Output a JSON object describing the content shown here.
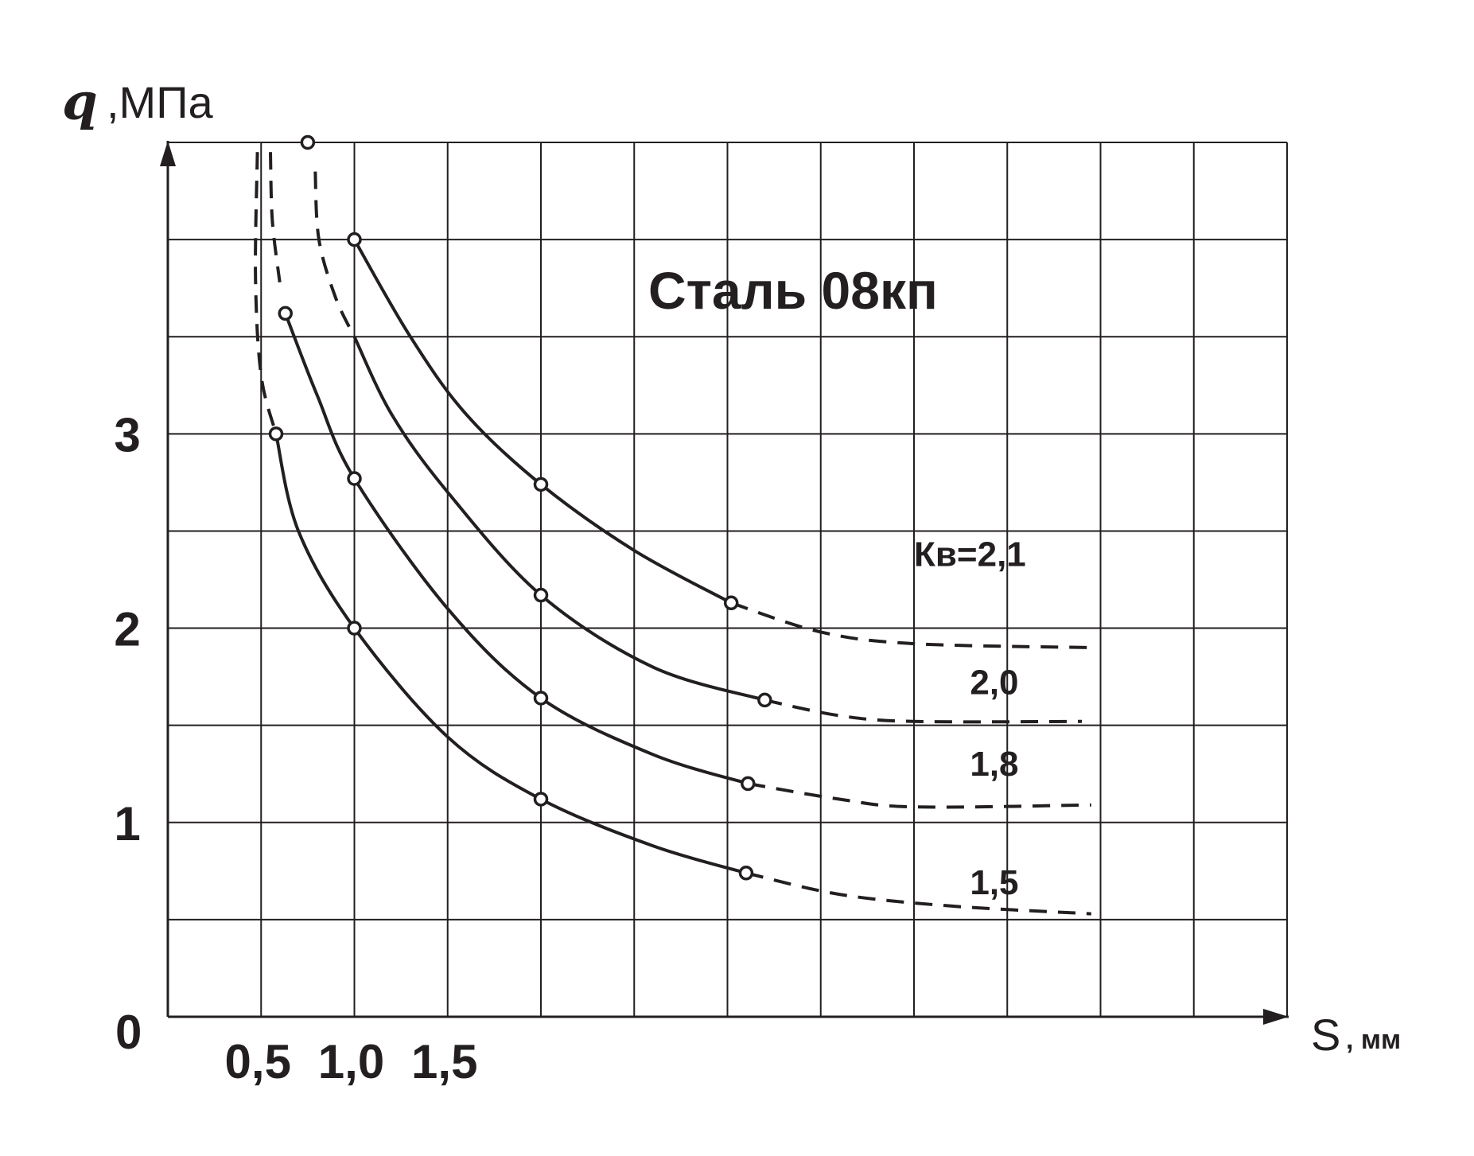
{
  "chart_data": {
    "type": "line",
    "title": "Сталь 08кп",
    "ylabel_symbol": "q",
    "ylabel_unit": ",МПа",
    "xlabel_symbol": "S",
    "xlabel_unit": ", мм",
    "xlim": [
      0,
      6
    ],
    "ylim": [
      0,
      4.5
    ],
    "grid": true,
    "x_ticks": [
      {
        "value": 0.5,
        "label": "0,5"
      },
      {
        "value": 1.0,
        "label": "1,0"
      },
      {
        "value": 1.5,
        "label": "1,5"
      }
    ],
    "y_ticks": [
      {
        "value": 1,
        "label": "1"
      },
      {
        "value": 2,
        "label": "2"
      },
      {
        "value": 3,
        "label": "3"
      }
    ],
    "origin_label": "0",
    "series": [
      {
        "name": "Кв=2,1",
        "label": "Кв=2,1",
        "label_x": 4.0,
        "label_y": 2.32,
        "dashed_start": [
          [
            0.79,
            4.35
          ],
          [
            0.81,
            4.0
          ],
          [
            0.9,
            3.7
          ],
          [
            1.0,
            3.5
          ]
        ],
        "solid": [
          [
            1.0,
            4.0
          ],
          [
            1.3,
            3.5
          ],
          [
            1.6,
            3.1
          ],
          [
            2.0,
            2.74
          ],
          [
            2.5,
            2.4
          ],
          [
            3.02,
            2.13
          ]
        ],
        "dashed_end": [
          [
            3.02,
            2.13
          ],
          [
            3.5,
            1.98
          ],
          [
            4.0,
            1.92
          ],
          [
            4.95,
            1.9
          ]
        ],
        "markers": [
          [
            0.75,
            4.5
          ],
          [
            1.0,
            4.0
          ],
          [
            2.0,
            2.74
          ],
          [
            3.02,
            2.13
          ]
        ]
      },
      {
        "name": "2,0",
        "label": "2,0",
        "label_x": 4.3,
        "label_y": 1.66,
        "solid": [
          [
            1.0,
            3.5
          ],
          [
            1.2,
            3.1
          ],
          [
            1.5,
            2.7
          ],
          [
            2.0,
            2.17
          ],
          [
            2.6,
            1.8
          ],
          [
            3.2,
            1.63
          ]
        ],
        "dashed_end": [
          [
            3.2,
            1.63
          ],
          [
            3.6,
            1.55
          ],
          [
            4.0,
            1.52
          ],
          [
            4.9,
            1.52
          ]
        ],
        "markers": [
          [
            2.0,
            2.17
          ],
          [
            3.2,
            1.63
          ]
        ]
      },
      {
        "name": "1,8",
        "label": "1,8",
        "label_x": 4.3,
        "label_y": 1.24,
        "dashed_start": [
          [
            0.55,
            4.45
          ],
          [
            0.56,
            4.1
          ],
          [
            0.6,
            3.78
          ]
        ],
        "solid": [
          [
            0.63,
            3.62
          ],
          [
            0.8,
            3.2
          ],
          [
            1.0,
            2.77
          ],
          [
            1.5,
            2.1
          ],
          [
            2.0,
            1.64
          ],
          [
            2.6,
            1.35
          ],
          [
            3.11,
            1.2
          ]
        ],
        "dashed_end": [
          [
            3.11,
            1.2
          ],
          [
            3.6,
            1.12
          ],
          [
            4.0,
            1.08
          ],
          [
            4.95,
            1.09
          ]
        ],
        "markers": [
          [
            0.63,
            3.62
          ],
          [
            1.0,
            2.77
          ],
          [
            2.0,
            1.64
          ],
          [
            3.11,
            1.2
          ]
        ]
      },
      {
        "name": "1,5",
        "label": "1,5",
        "label_x": 4.3,
        "label_y": 0.63,
        "dashed_start": [
          [
            0.48,
            4.45
          ],
          [
            0.47,
            3.8
          ],
          [
            0.5,
            3.3
          ],
          [
            0.58,
            3.0
          ]
        ],
        "solid": [
          [
            0.58,
            3.0
          ],
          [
            0.7,
            2.5
          ],
          [
            1.0,
            2.0
          ],
          [
            1.5,
            1.44
          ],
          [
            2.0,
            1.12
          ],
          [
            2.6,
            0.88
          ],
          [
            3.1,
            0.74
          ]
        ],
        "dashed_end": [
          [
            3.1,
            0.74
          ],
          [
            3.6,
            0.63
          ],
          [
            4.2,
            0.57
          ],
          [
            4.95,
            0.53
          ]
        ],
        "markers": [
          [
            0.58,
            3.0
          ],
          [
            1.0,
            2.0
          ],
          [
            2.0,
            1.12
          ],
          [
            3.1,
            0.74
          ]
        ]
      }
    ]
  }
}
